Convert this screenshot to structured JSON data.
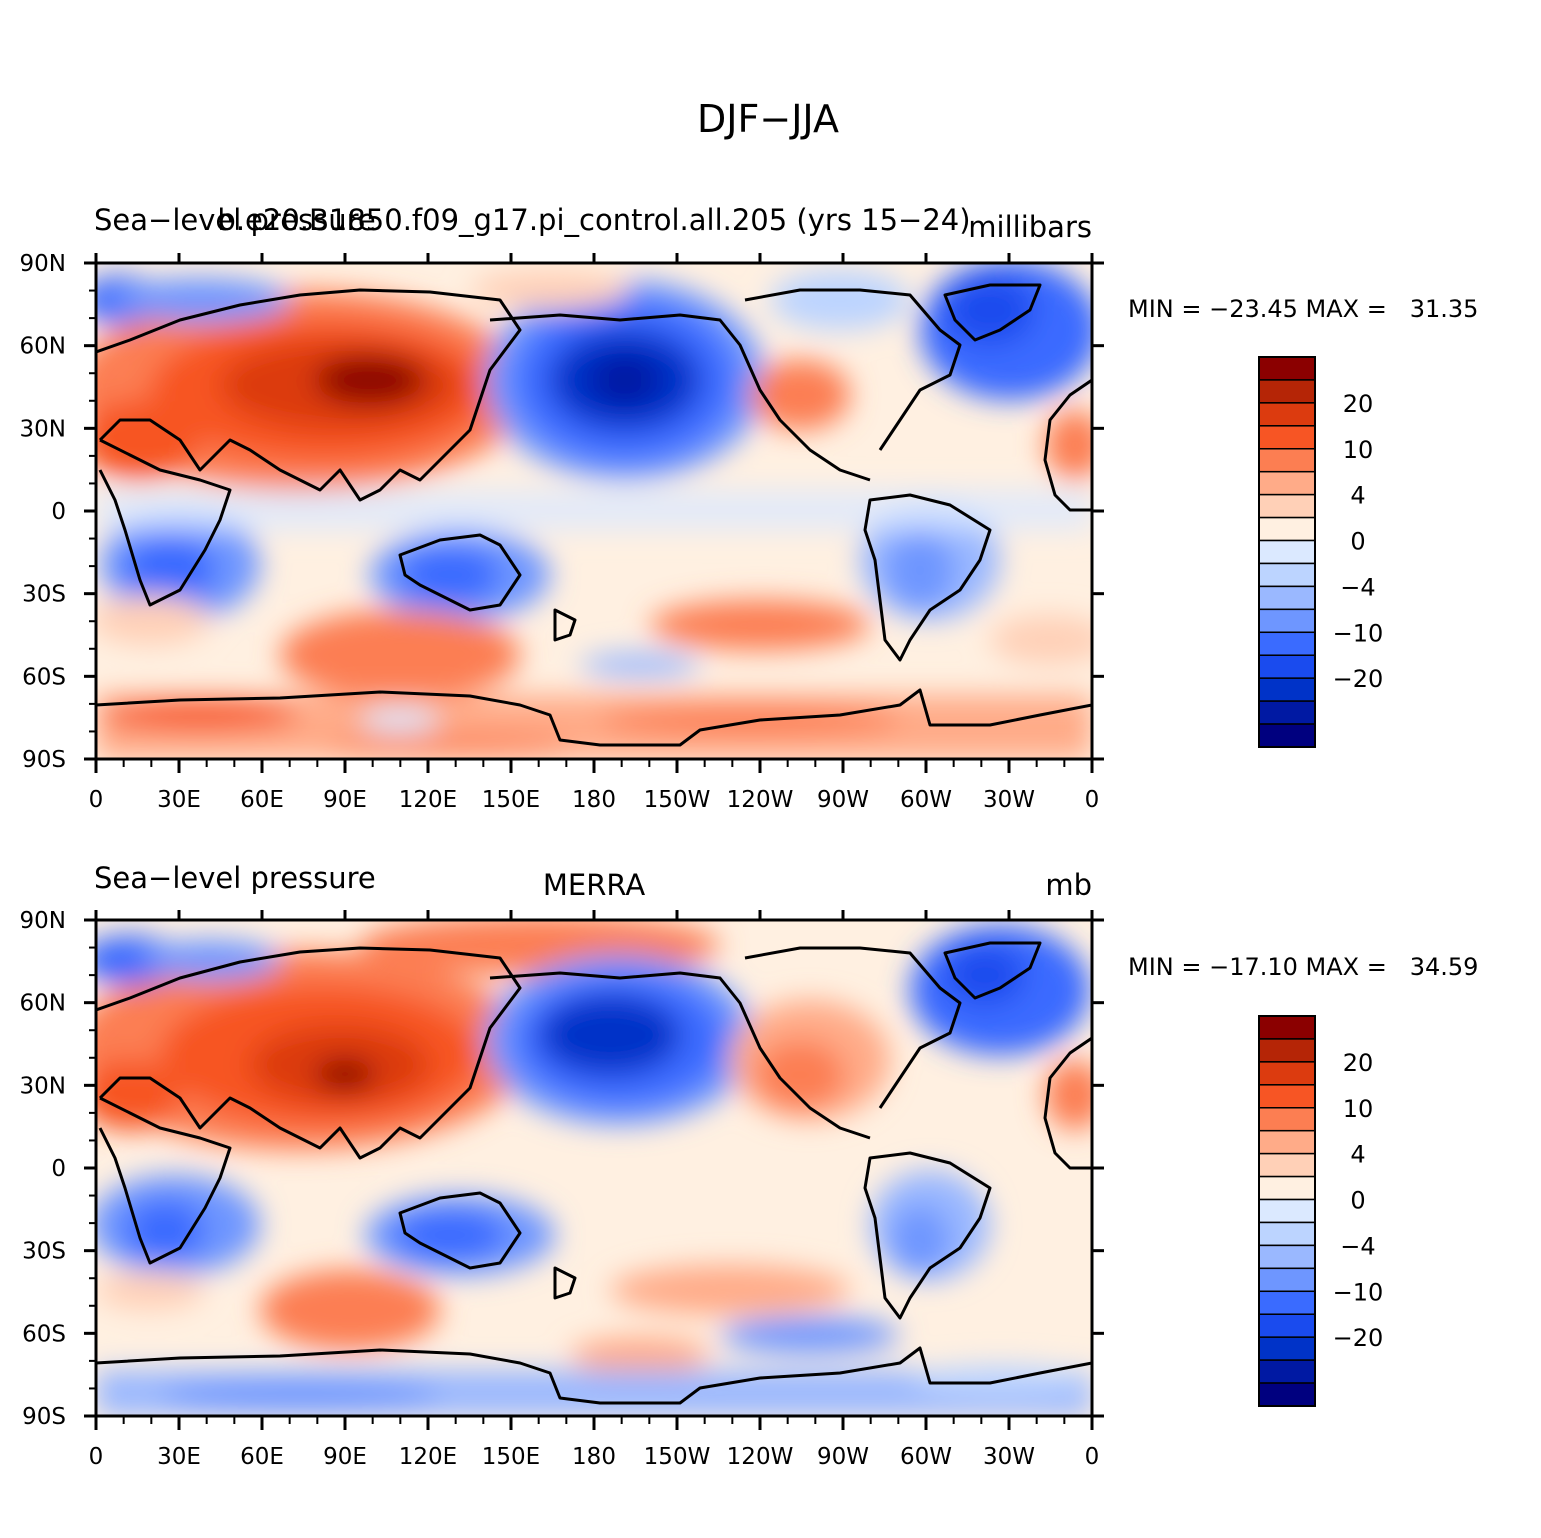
{
  "figure": {
    "title": "DJF−JJA"
  },
  "palette": [
    "#00007f",
    "#0019a3",
    "#0033c8",
    "#1a4bee",
    "#3a6bff",
    "#6e96ff",
    "#9ab8ff",
    "#bcd4ff",
    "#dbe9ff",
    "#fff0e1",
    "#ffd0b7",
    "#ffab88",
    "#fc7e52",
    "#f75524",
    "#dc3b0f",
    "#b52506",
    "#8b0000"
  ],
  "colorbar_labels": [
    "20",
    "10",
    "4",
    "0",
    "−4",
    "−10",
    "−20"
  ],
  "x_tick_labels": [
    "0",
    "30E",
    "60E",
    "90E",
    "120E",
    "150E",
    "180",
    "150W",
    "120W",
    "90W",
    "60W",
    "30W",
    "0"
  ],
  "y_tick_labels": [
    "90N",
    "60N",
    "30N",
    "0",
    "30S",
    "60S",
    "90S"
  ],
  "panels": [
    {
      "left_label": "Sea−level pressure",
      "center_label": "b.e20.B1850.f09_g17.pi_control.all.205 (yrs 15−24)",
      "right_label": "millibars",
      "stats": "MIN = −23.45 MAX =   31.35"
    },
    {
      "left_label": "Sea−level pressure",
      "center_label": "MERRA",
      "right_label": "mb",
      "stats": "MIN = −17.10 MAX =   34.59"
    }
  ]
}
